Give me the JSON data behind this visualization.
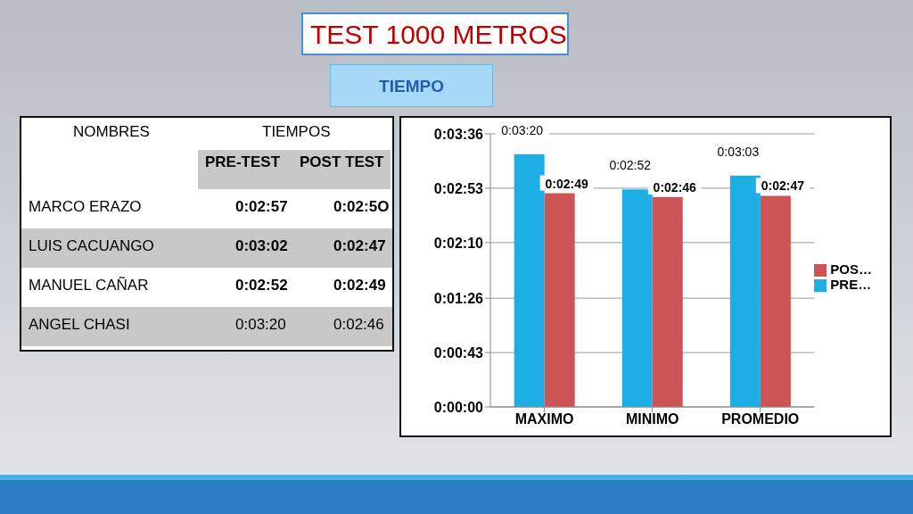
{
  "chart_data": [
    {
      "type": "other",
      "title": "TEST 1000 METROS",
      "subtitle": "TIEMPO",
      "annotations": [
        "NOMBRES",
        "TIEMPOS",
        "PRE-TEST",
        "POST TEST",
        "MARCO ERAZO",
        "0:02:57",
        "0:02:5O",
        "LUIS CACUANGO",
        "0:03:02",
        "0:02:47",
        "MANUEL CAÑAR",
        "0:02:52",
        "0:02:49",
        "ANGEL CHASI",
        "0:03:20",
        "0:02:46"
      ]
    },
    {
      "type": "bar",
      "categories": [
        "MAXIMO",
        "MINIMO",
        "PROMEDIO"
      ],
      "series": [
        {
          "name": "PRE…",
          "color": "#1eaee6",
          "values": [
            200,
            172,
            183
          ],
          "value_labels": [
            "0:03:20",
            "0:02:52",
            "0:03:03"
          ]
        },
        {
          "name": "POS…",
          "color": "#cd5454",
          "values": [
            169,
            166,
            167
          ],
          "value_labels": [
            "0:02:49",
            "0:02:46",
            "0:02:47"
          ]
        }
      ],
      "ylim": [
        0,
        216
      ],
      "yticks": [
        {
          "value": 0,
          "label": "0:00:00"
        },
        {
          "value": 43,
          "label": "0:00:43"
        },
        {
          "value": 86,
          "label": "0:01:26"
        },
        {
          "value": 130,
          "label": "0:02:10"
        },
        {
          "value": 173,
          "label": "0:02:53"
        },
        {
          "value": 216,
          "label": "0:03:36"
        }
      ],
      "grid": "y",
      "legend": "right"
    }
  ]
}
